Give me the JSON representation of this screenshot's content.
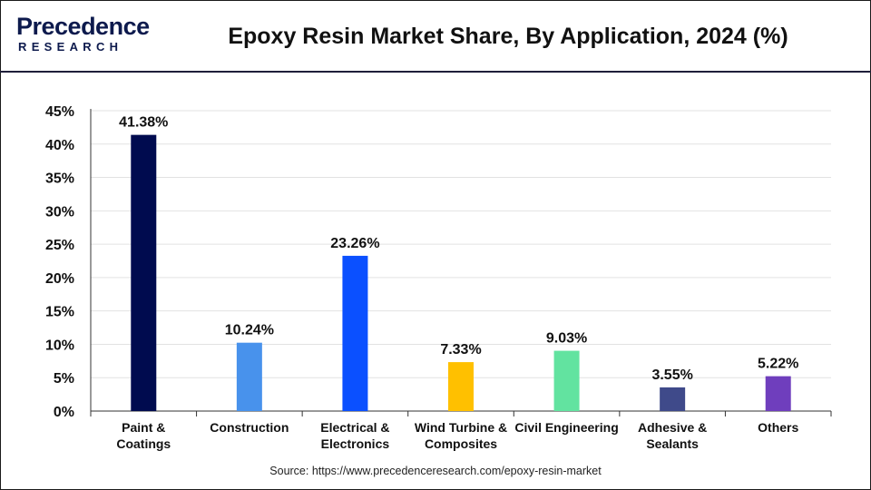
{
  "brand": {
    "name": "Precedence",
    "sub": "RESEARCH"
  },
  "colors": {
    "brand": "#0d1a4d",
    "grid": "#e2e2e2",
    "axis": "#333333",
    "bars": [
      "#000b4f",
      "#4892ec",
      "#0b50ff",
      "#ffc000",
      "#62e3a0",
      "#3f4a8a",
      "#6f3ebd"
    ]
  },
  "source": "Source: https://www.precedenceresearch.com/epoxy-resin-market",
  "chart_data": {
    "type": "bar",
    "title": "Epoxy Resin Market Share, By Application, 2024 (%)",
    "xlabel": "",
    "ylabel": "",
    "ylim": [
      0,
      45
    ],
    "yticks": [
      0,
      5,
      10,
      15,
      20,
      25,
      30,
      35,
      40,
      45
    ],
    "ytick_labels": [
      "0%",
      "5%",
      "10%",
      "15%",
      "20%",
      "25%",
      "30%",
      "35%",
      "40%",
      "45%"
    ],
    "grid": true,
    "categories": [
      [
        "Paint &",
        "Coatings"
      ],
      [
        "Construction"
      ],
      [
        "Electrical &",
        "Electronics"
      ],
      [
        "Wind Turbine &",
        "Composites"
      ],
      [
        "Civil Engineering"
      ],
      [
        "Adhesive &",
        "Sealants"
      ],
      [
        "Others"
      ]
    ],
    "values": [
      41.38,
      10.24,
      23.26,
      7.33,
      9.03,
      3.55,
      5.22
    ],
    "value_labels": [
      "41.38%",
      "10.24%",
      "23.26%",
      "7.33%",
      "9.03%",
      "3.55%",
      "5.22%"
    ]
  }
}
